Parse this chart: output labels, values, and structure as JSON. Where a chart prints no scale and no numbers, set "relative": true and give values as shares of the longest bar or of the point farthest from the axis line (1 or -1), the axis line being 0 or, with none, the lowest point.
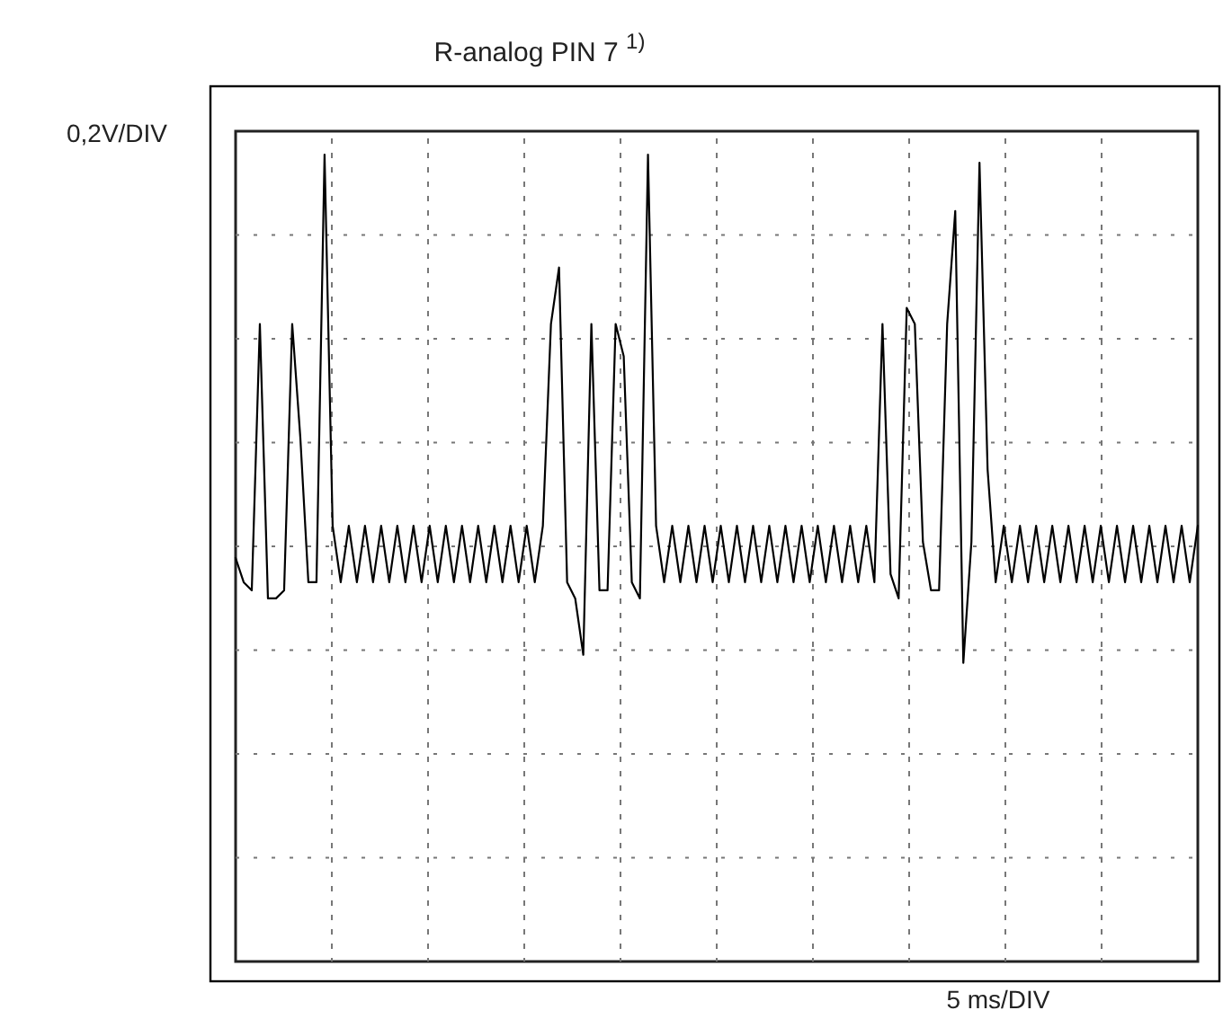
{
  "chart_data": {
    "type": "line",
    "title": "R-analog PIN 7 $^{1)}$",
    "ylabel": "0,2V/DIV",
    "xlabel": "5 ms/DIV",
    "relative": true,
    "grid": true,
    "categories": [
      null,
      null,
      null,
      null,
      null,
      null,
      null,
      null,
      null,
      null,
      null,
      null,
      null,
      null,
      null,
      null,
      null,
      null,
      null,
      null,
      null,
      null,
      null,
      null,
      null,
      null,
      null,
      null,
      null,
      null,
      null,
      null,
      null,
      null,
      null,
      null,
      null,
      null,
      null,
      null,
      null,
      null,
      null,
      null,
      null,
      null,
      null,
      null,
      null,
      null,
      null,
      null,
      null,
      null,
      null,
      null,
      null,
      null,
      null,
      null,
      null,
      null,
      null,
      null,
      null,
      null,
      null,
      null,
      null,
      null,
      null,
      null,
      null,
      null,
      null,
      null,
      null,
      null,
      null,
      null,
      null,
      null,
      null,
      null,
      null,
      null,
      null,
      null,
      null,
      null,
      null,
      null,
      null,
      null,
      null,
      null,
      null,
      null,
      null,
      null,
      null,
      null,
      null,
      null,
      null,
      null,
      null,
      null,
      null,
      null,
      null,
      null,
      null,
      null,
      null,
      null,
      null,
      null,
      null,
      null
    ],
    "series": [
      {
        "color": "#000000",
        "values": [
          0.5,
          0.47,
          0.46,
          0.79,
          0.45,
          0.45,
          0.46,
          0.79,
          0.65,
          0.47,
          0.47,
          1.0,
          0.54,
          0.47,
          0.54,
          0.47,
          0.54,
          0.47,
          0.54,
          0.47,
          0.54,
          0.47,
          0.54,
          0.47,
          0.54,
          0.47,
          0.54,
          0.47,
          0.54,
          0.47,
          0.54,
          0.47,
          0.54,
          0.47,
          0.54,
          0.47,
          0.54,
          0.47,
          0.54,
          0.79,
          0.86,
          0.47,
          0.45,
          0.38,
          0.79,
          0.46,
          0.46,
          0.79,
          0.75,
          0.47,
          0.45,
          1.0,
          0.54,
          0.47,
          0.54,
          0.47,
          0.54,
          0.47,
          0.54,
          0.47,
          0.54,
          0.47,
          0.54,
          0.47,
          0.54,
          0.47,
          0.54,
          0.47,
          0.54,
          0.47,
          0.54,
          0.47,
          0.54,
          0.47,
          0.54,
          0.47,
          0.54,
          0.47,
          0.54,
          0.47,
          0.79,
          0.48,
          0.45,
          0.81,
          0.79,
          0.52,
          0.46,
          0.46,
          0.79,
          0.93,
          0.37,
          0.52,
          0.99,
          0.61,
          0.47,
          0.54,
          0.47,
          0.54,
          0.47,
          0.54,
          0.47,
          0.54,
          0.47,
          0.54,
          0.47,
          0.54,
          0.47,
          0.54,
          0.47,
          0.54,
          0.47,
          0.54,
          0.47,
          0.54,
          0.47,
          0.54,
          0.47,
          0.54,
          0.47,
          0.54
        ]
      }
    ]
  }
}
